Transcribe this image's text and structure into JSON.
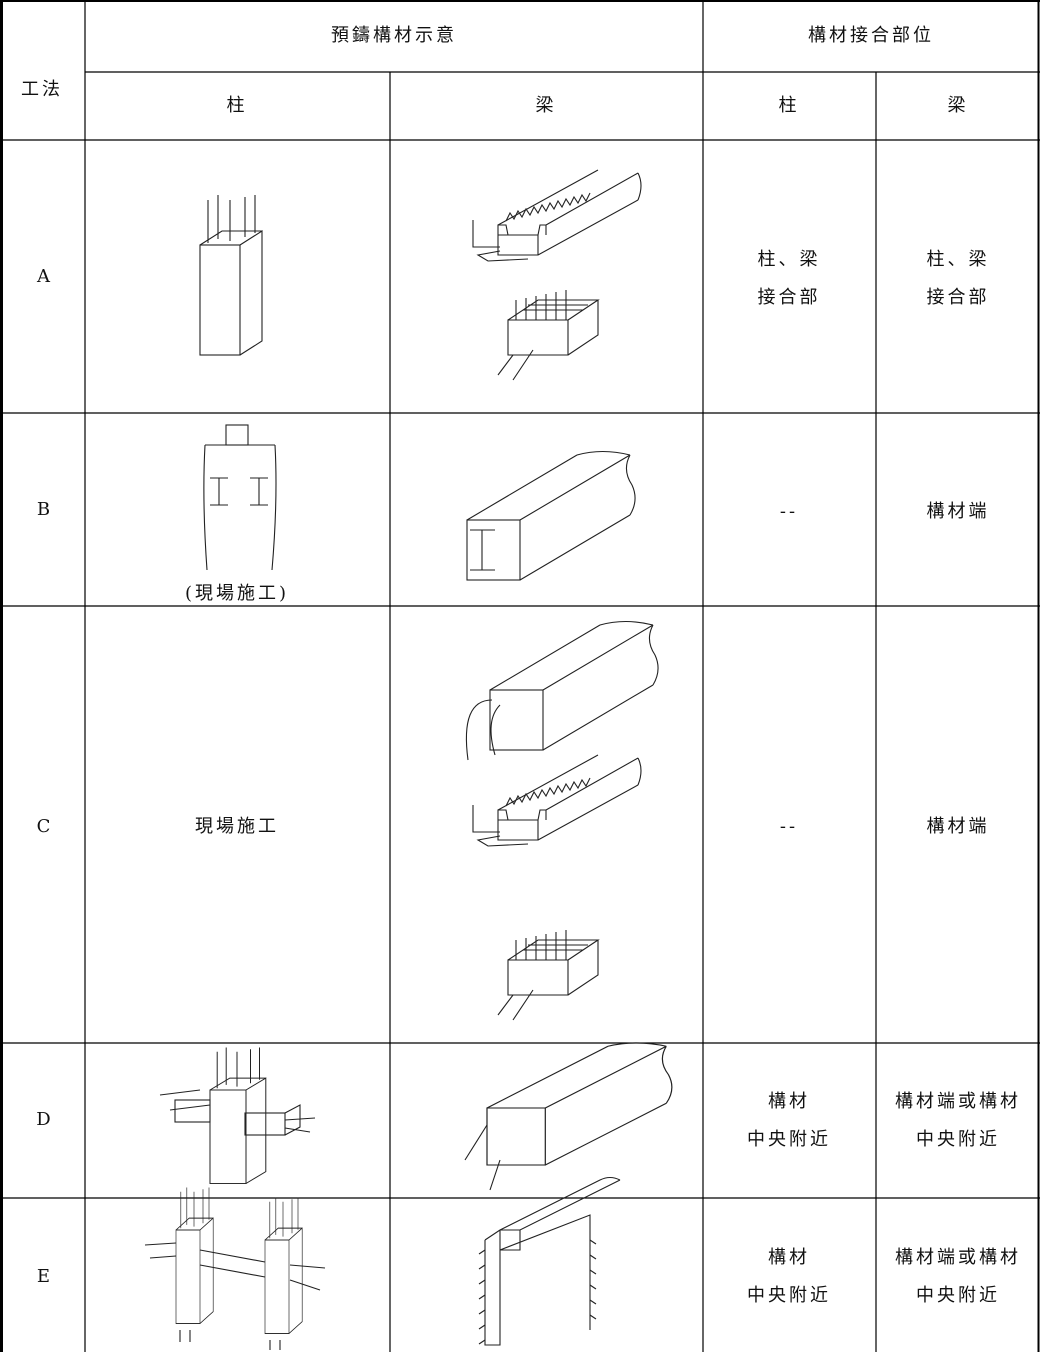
{
  "table": {
    "header": {
      "method": "工法",
      "precast": "預鑄構材示意",
      "joint": "構材接合部位",
      "column": "柱",
      "beam": "梁",
      "joint_column": "柱",
      "joint_beam": "梁"
    },
    "rows": [
      {
        "method": "A",
        "joint_column": [
          "柱、梁",
          "接合部"
        ],
        "joint_beam": [
          "柱、梁",
          "接合部"
        ]
      },
      {
        "method": "B",
        "column_note": "(現場施工)",
        "joint_column": [
          "--"
        ],
        "joint_beam": [
          "構材端"
        ]
      },
      {
        "method": "C",
        "column_text": "現場施工",
        "joint_column": [
          "--"
        ],
        "joint_beam": [
          "構材端"
        ]
      },
      {
        "method": "D",
        "joint_column": [
          "構材",
          "中央附近"
        ],
        "joint_beam": [
          "構材端或構材",
          "中央附近"
        ]
      },
      {
        "method": "E",
        "joint_column": [
          "構材",
          "中央附近"
        ],
        "joint_beam": [
          "構材端或構材",
          "中央附近"
        ]
      }
    ]
  }
}
